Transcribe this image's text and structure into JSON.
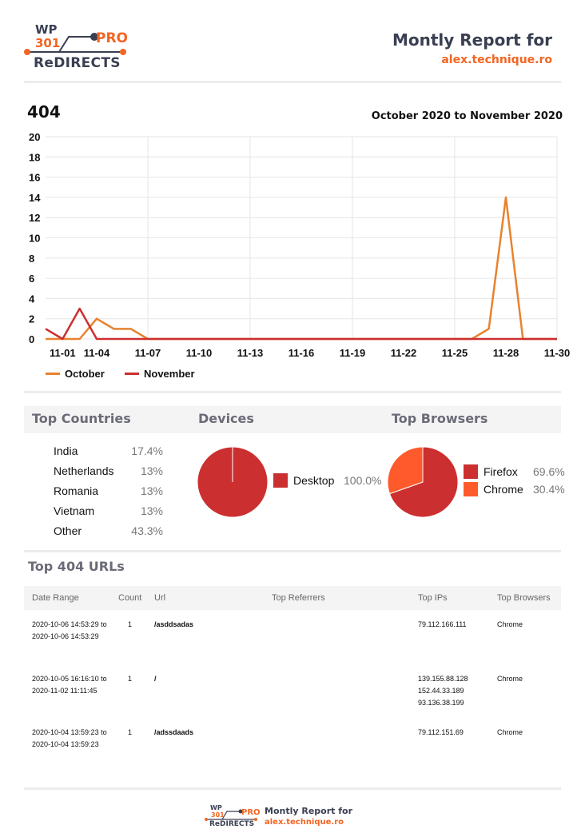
{
  "header": {
    "logo": {
      "wp": "WP",
      "num": "301",
      "pro": "PRO",
      "redirects": "ReDIRECTS"
    },
    "title": "Montly Report for",
    "domain": "alex.technique.ro"
  },
  "colors": {
    "accent": "#f26522",
    "dark": "#3a3f52",
    "october": "#e8822e",
    "november": "#cc2f30",
    "chrome": "#ff5a2b",
    "firefox": "#cc2f30"
  },
  "chart_data": {
    "type": "line",
    "title": "404",
    "subtitle": "October 2020 to November 2020",
    "x": [
      1,
      2,
      3,
      4,
      5,
      6,
      7,
      8,
      9,
      10,
      11,
      12,
      13,
      14,
      15,
      16,
      17,
      18,
      19,
      20,
      21,
      22,
      23,
      24,
      25,
      26,
      27,
      28,
      29,
      30,
      31
    ],
    "x_tick_labels": [
      "11-01",
      "11-04",
      "11-07",
      "11-10",
      "11-13",
      "11-16",
      "11-19",
      "11-22",
      "11-25",
      "11-28",
      "11-30"
    ],
    "series": [
      {
        "name": "October",
        "values": [
          0,
          0,
          0,
          2,
          1,
          1,
          0,
          0,
          0,
          0,
          0,
          0,
          0,
          0,
          0,
          0,
          0,
          0,
          0,
          0,
          0,
          0,
          0,
          0,
          0,
          0,
          1,
          14,
          0,
          0,
          0
        ]
      },
      {
        "name": "November",
        "values": [
          1,
          0,
          3,
          0,
          0,
          0,
          0,
          0,
          0,
          0,
          0,
          0,
          0,
          0,
          0,
          0,
          0,
          0,
          0,
          0,
          0,
          0,
          0,
          0,
          0,
          0,
          0,
          0,
          0,
          0,
          0
        ]
      }
    ],
    "ylim": [
      0,
      20
    ],
    "y_ticks": [
      0,
      2,
      4,
      6,
      8,
      10,
      12,
      14,
      16,
      18,
      20
    ],
    "grid": true,
    "legend": "bottom-left"
  },
  "sections": {
    "countries_title": "Top Countries",
    "devices_title": "Devices",
    "browsers_title": "Top Browsers"
  },
  "countries": [
    {
      "name": "India",
      "pct": "17.4%"
    },
    {
      "name": "Netherlands",
      "pct": "13%"
    },
    {
      "name": "Romania",
      "pct": "13%"
    },
    {
      "name": "Vietnam",
      "pct": "13%"
    },
    {
      "name": "Other",
      "pct": "43.3%"
    }
  ],
  "devices": [
    {
      "name": "Desktop",
      "pct": "100.0%",
      "value": 100.0
    }
  ],
  "browsers": [
    {
      "name": "Firefox",
      "pct": "69.6%",
      "value": 69.6
    },
    {
      "name": "Chrome",
      "pct": "30.4%",
      "value": 30.4
    }
  ],
  "urls": {
    "title": "Top 404 URLs",
    "headers": [
      "Date Range",
      "Count",
      "Url",
      "Top Referrers",
      "Top IPs",
      "Top Browsers"
    ],
    "rows": [
      {
        "date": "2020-10-06 14:53:29 to\n2020-10-06 14:53:29",
        "count": "1",
        "url": "/asddsadas",
        "ref": "",
        "ips": "79.112.166.111",
        "browser": "Chrome"
      },
      {
        "date": "2020-10-05 16:16:10 to\n2020-11-02 11:11:45",
        "count": "1",
        "url": "/",
        "ref": "",
        "ips": "139.155.88.128\n152.44.33.189\n93.136.38.199",
        "browser": "Chrome"
      },
      {
        "date": "2020-10-04 13:59:23 to\n2020-10-04 13:59:23",
        "count": "1",
        "url": "/adssdaads",
        "ref": "",
        "ips": "79.112.151.69",
        "browser": "Chrome"
      }
    ]
  },
  "footer": {
    "logo": {
      "wp": "WP",
      "num": "301",
      "pro": "PRO",
      "redirects": "ReDIRECTS"
    },
    "title": "Montly Report for",
    "domain": "alex.technique.ro"
  }
}
